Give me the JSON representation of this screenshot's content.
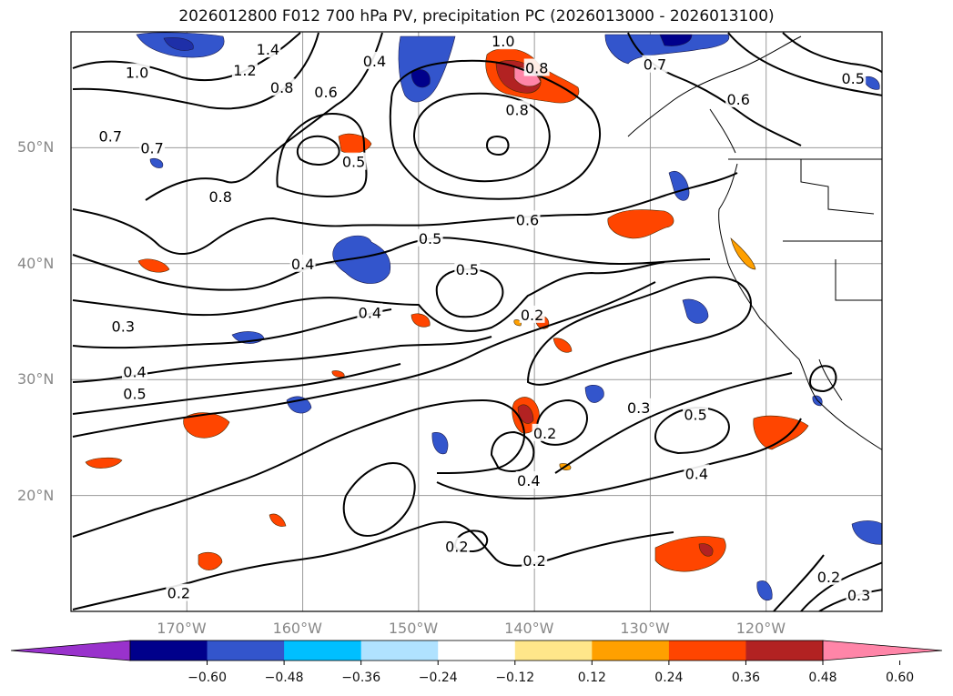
{
  "title": "2026012800 F012 700 hPa PV, precipitation PC (2026013000 - 2026013100)",
  "map": {
    "extent": {
      "lon_min": -180,
      "lon_max": -110,
      "lat_min": 10,
      "lat_max": 60
    },
    "grid": true,
    "lat_ticks": [
      {
        "label": "50°N",
        "value": 50
      },
      {
        "label": "40°N",
        "value": 40
      },
      {
        "label": "30°N",
        "value": 30
      },
      {
        "label": "20°N",
        "value": 20
      }
    ],
    "lon_ticks": [
      {
        "label": "170°W",
        "value": -170
      },
      {
        "label": "160°W",
        "value": -160
      },
      {
        "label": "150°W",
        "value": -150
      },
      {
        "label": "140°W",
        "value": -140
      },
      {
        "label": "130°W",
        "value": -130
      },
      {
        "label": "120°W",
        "value": -120
      }
    ],
    "contour_labels": [
      {
        "text": "1.0",
        "lon": -174.3,
        "lat": 56.5
      },
      {
        "text": "1.2",
        "lon": -165.0,
        "lat": 56.7
      },
      {
        "text": "1.4",
        "lon": -163.0,
        "lat": 58.5
      },
      {
        "text": "0.8",
        "lon": -161.8,
        "lat": 55.2
      },
      {
        "text": "0.6",
        "lon": -158.0,
        "lat": 54.8
      },
      {
        "text": "0.4",
        "lon": -153.8,
        "lat": 57.5
      },
      {
        "text": "1.0",
        "lon": -142.7,
        "lat": 59.2
      },
      {
        "text": "0.8",
        "lon": -139.8,
        "lat": 56.9
      },
      {
        "text": "0.8",
        "lon": -141.5,
        "lat": 53.3
      },
      {
        "text": "0.7",
        "lon": -129.6,
        "lat": 57.2
      },
      {
        "text": "0.6",
        "lon": -122.4,
        "lat": 54.2
      },
      {
        "text": "0.5",
        "lon": -112.5,
        "lat": 56.0
      },
      {
        "text": "0.7",
        "lon": -176.6,
        "lat": 51.0
      },
      {
        "text": "0.7",
        "lon": -173.0,
        "lat": 50.0
      },
      {
        "text": "0.5",
        "lon": -155.6,
        "lat": 48.8
      },
      {
        "text": "0.8",
        "lon": -167.1,
        "lat": 45.8
      },
      {
        "text": "0.6",
        "lon": -140.6,
        "lat": 43.8
      },
      {
        "text": "0.5",
        "lon": -149.0,
        "lat": 42.2
      },
      {
        "text": "0.4",
        "lon": -160.0,
        "lat": 40.0
      },
      {
        "text": "0.5",
        "lon": -145.8,
        "lat": 39.5
      },
      {
        "text": "0.4",
        "lon": -154.2,
        "lat": 35.8
      },
      {
        "text": "0.2",
        "lon": -140.2,
        "lat": 35.6
      },
      {
        "text": "0.3",
        "lon": -175.5,
        "lat": 34.6
      },
      {
        "text": "0.4",
        "lon": -174.5,
        "lat": 30.7
      },
      {
        "text": "0.5",
        "lon": -174.5,
        "lat": 28.8
      },
      {
        "text": "0.2",
        "lon": -139.1,
        "lat": 25.4
      },
      {
        "text": "0.3",
        "lon": -131.0,
        "lat": 27.6
      },
      {
        "text": "0.5",
        "lon": -126.1,
        "lat": 27.0
      },
      {
        "text": "0.4",
        "lon": -126.0,
        "lat": 21.9
      },
      {
        "text": "0.4",
        "lon": -140.5,
        "lat": 21.3
      },
      {
        "text": "0.2",
        "lon": -146.7,
        "lat": 15.6
      },
      {
        "text": "0.2",
        "lon": -140.0,
        "lat": 14.4
      },
      {
        "text": "0.2",
        "lon": -170.7,
        "lat": 11.6
      },
      {
        "text": "0.2",
        "lon": -114.6,
        "lat": 13.0
      },
      {
        "text": "0.3",
        "lon": -112.0,
        "lat": 11.4
      }
    ]
  },
  "colorbar": {
    "colors": [
      "#9932cc",
      "#00008b",
      "#3355cc",
      "#00bfff",
      "#b0e2ff",
      "#ffffff",
      "#ffe68a",
      "#ffa000",
      "#ff4500",
      "#b22222",
      "#ff85a8"
    ],
    "tick_labels": [
      "−0.60",
      "−0.48",
      "−0.36",
      "−0.24",
      "−0.12",
      "0.12",
      "0.24",
      "0.36",
      "0.48",
      "0.60"
    ]
  }
}
